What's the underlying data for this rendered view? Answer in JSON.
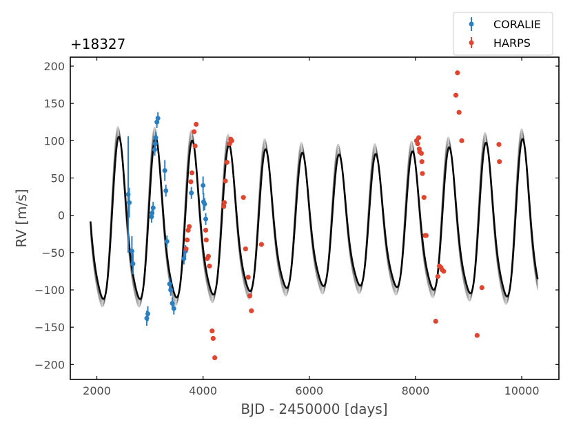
{
  "chart_data": {
    "type": "scatter",
    "title": "",
    "offset_label": "+18327",
    "xlabel": "BJD - 2450000 [days]",
    "ylabel": "RV [m/s]",
    "xlim": [
      1500,
      10700
    ],
    "ylim": [
      -220,
      212
    ],
    "xticks": [
      2000,
      4000,
      6000,
      8000,
      10000
    ],
    "yticks": [
      200,
      150,
      100,
      50,
      0,
      -50,
      -100,
      -150,
      -200
    ],
    "xtick_labels": [
      "2000",
      "4000",
      "6000",
      "8000",
      "10000"
    ],
    "ytick_labels": [
      "200",
      "150",
      "100",
      "50",
      "0",
      "−50",
      "−100",
      "−150",
      "−200"
    ],
    "legend": {
      "position": "top-right, outside plot",
      "entries": [
        "CORALIE",
        "HARPS"
      ]
    },
    "colors": {
      "coralie": "#2a7fc1",
      "harps": "#e0452f",
      "model": "#000000",
      "axes": "#000000"
    },
    "model": {
      "name": "model draws",
      "x_range": [
        1880,
        10300
      ],
      "period": 691,
      "phase_ref": 2420,
      "mean": -18,
      "amplitude_max": 120,
      "amplitude_min": 98,
      "shape_harmonic": 0.18,
      "n_draws": 6
    },
    "series": [
      {
        "name": "CORALIE",
        "points": [
          {
            "x": 2590,
            "y": 28,
            "err": 78
          },
          {
            "x": 2610,
            "y": 17,
            "err": 20
          },
          {
            "x": 2660,
            "y": -48,
            "err": 20
          },
          {
            "x": 2680,
            "y": -65,
            "err": 14
          },
          {
            "x": 2940,
            "y": -138,
            "err": 10
          },
          {
            "x": 2960,
            "y": -132,
            "err": 10
          },
          {
            "x": 3030,
            "y": -2,
            "err": 8
          },
          {
            "x": 3040,
            "y": 3,
            "err": 8
          },
          {
            "x": 3060,
            "y": 10,
            "err": 8
          },
          {
            "x": 3090,
            "y": 88,
            "err": 8
          },
          {
            "x": 3100,
            "y": 96,
            "err": 8
          },
          {
            "x": 3110,
            "y": 104,
            "err": 8
          },
          {
            "x": 3130,
            "y": 125,
            "err": 8
          },
          {
            "x": 3150,
            "y": 130,
            "err": 8
          },
          {
            "x": 3280,
            "y": 60,
            "err": 14
          },
          {
            "x": 3300,
            "y": 33,
            "err": 8
          },
          {
            "x": 3320,
            "y": -35,
            "err": 8
          },
          {
            "x": 3370,
            "y": -92,
            "err": 8
          },
          {
            "x": 3390,
            "y": -100,
            "err": 8
          },
          {
            "x": 3420,
            "y": -118,
            "err": 8
          },
          {
            "x": 3450,
            "y": -125,
            "err": 8
          },
          {
            "x": 3640,
            "y": -58,
            "err": 8
          },
          {
            "x": 3670,
            "y": -48,
            "err": 8
          },
          {
            "x": 3780,
            "y": 30,
            "err": 8
          },
          {
            "x": 4000,
            "y": 40,
            "err": 12
          },
          {
            "x": 4010,
            "y": 18,
            "err": 12
          },
          {
            "x": 4030,
            "y": 15,
            "err": 8
          },
          {
            "x": 4050,
            "y": -5,
            "err": 8
          }
        ]
      },
      {
        "name": "HARPS",
        "points": [
          {
            "x": 3680,
            "y": -45
          },
          {
            "x": 3700,
            "y": -33
          },
          {
            "x": 3720,
            "y": -20
          },
          {
            "x": 3740,
            "y": -15
          },
          {
            "x": 3770,
            "y": 45
          },
          {
            "x": 3790,
            "y": 57
          },
          {
            "x": 3830,
            "y": 112
          },
          {
            "x": 3850,
            "y": 93
          },
          {
            "x": 3870,
            "y": 122
          },
          {
            "x": 4050,
            "y": -20
          },
          {
            "x": 4060,
            "y": -33
          },
          {
            "x": 4080,
            "y": -58
          },
          {
            "x": 4100,
            "y": -55
          },
          {
            "x": 4120,
            "y": -68
          },
          {
            "x": 4170,
            "y": -155
          },
          {
            "x": 4190,
            "y": -165
          },
          {
            "x": 4220,
            "y": -191
          },
          {
            "x": 4390,
            "y": 12
          },
          {
            "x": 4400,
            "y": 17
          },
          {
            "x": 4420,
            "y": 46
          },
          {
            "x": 4450,
            "y": 71
          },
          {
            "x": 4500,
            "y": 96
          },
          {
            "x": 4520,
            "y": 102
          },
          {
            "x": 4540,
            "y": 100
          },
          {
            "x": 4760,
            "y": 24
          },
          {
            "x": 4800,
            "y": -45
          },
          {
            "x": 4850,
            "y": -83
          },
          {
            "x": 4880,
            "y": -108
          },
          {
            "x": 4910,
            "y": -128
          },
          {
            "x": 5100,
            "y": -39
          },
          {
            "x": 8020,
            "y": 100
          },
          {
            "x": 8040,
            "y": 96
          },
          {
            "x": 8060,
            "y": 104
          },
          {
            "x": 8070,
            "y": 89
          },
          {
            "x": 8080,
            "y": 85
          },
          {
            "x": 8110,
            "y": 83
          },
          {
            "x": 8120,
            "y": 72
          },
          {
            "x": 8130,
            "y": 56
          },
          {
            "x": 8160,
            "y": 24
          },
          {
            "x": 8180,
            "y": -27
          },
          {
            "x": 8200,
            "y": -27
          },
          {
            "x": 8380,
            "y": -142
          },
          {
            "x": 8420,
            "y": -82
          },
          {
            "x": 8450,
            "y": -68
          },
          {
            "x": 8480,
            "y": -70
          },
          {
            "x": 8500,
            "y": -73
          },
          {
            "x": 8530,
            "y": -75
          },
          {
            "x": 8760,
            "y": 161
          },
          {
            "x": 8790,
            "y": 191
          },
          {
            "x": 8820,
            "y": 138
          },
          {
            "x": 8870,
            "y": 100
          },
          {
            "x": 9160,
            "y": -161
          },
          {
            "x": 9250,
            "y": -97
          },
          {
            "x": 9570,
            "y": 95
          },
          {
            "x": 9580,
            "y": 72
          }
        ]
      }
    ]
  }
}
